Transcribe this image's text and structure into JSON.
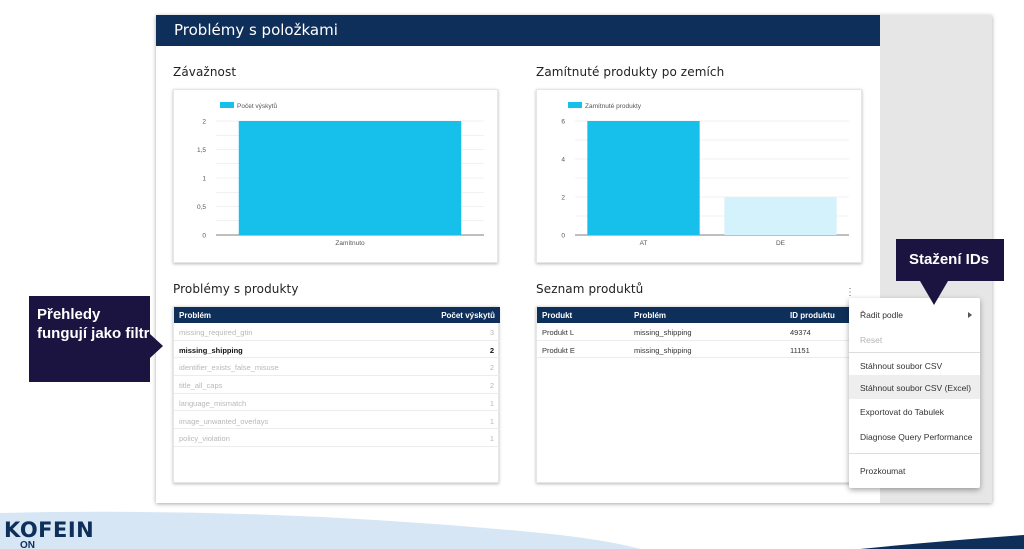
{
  "report": {
    "title": "Problémy s položkami"
  },
  "severity": {
    "title": "Závažnost",
    "chart_data": {
      "type": "bar",
      "categories": [
        "Zamítnuto"
      ],
      "series": [
        {
          "name": "Počet výskytů",
          "values": [
            2
          ]
        }
      ],
      "yticks": [
        "2",
        "1,5",
        "1",
        "0,5",
        "0"
      ],
      "ylim": [
        0,
        2
      ],
      "colors": [
        "#17c0eb"
      ]
    }
  },
  "country": {
    "title": "Zamítnuté produkty po zemích",
    "chart_data": {
      "type": "bar",
      "categories": [
        "AT",
        "DE"
      ],
      "series": [
        {
          "name": "Zamítnuté produkty",
          "values": [
            6,
            2
          ]
        }
      ],
      "yticks": [
        "6",
        "4",
        "2",
        "0"
      ],
      "ylim": [
        0,
        6
      ],
      "colors": [
        "#17c0eb",
        "#d4f2fb"
      ]
    }
  },
  "problems": {
    "title": "Problémy s produkty",
    "columns": [
      "Problém",
      "Počet výskytů"
    ],
    "rows": [
      {
        "name": "missing_required_gtin",
        "count": "3",
        "state": "muted"
      },
      {
        "name": "missing_shipping",
        "count": "2",
        "state": "strong"
      },
      {
        "name": "identifier_exists_false_misuse",
        "count": "2",
        "state": "muted"
      },
      {
        "name": "title_all_caps",
        "count": "2",
        "state": "muted"
      },
      {
        "name": "language_mismatch",
        "count": "1",
        "state": "muted"
      },
      {
        "name": "image_unwanted_overlays",
        "count": "1",
        "state": "muted"
      },
      {
        "name": "policy_violation",
        "count": "1",
        "state": "muted"
      }
    ]
  },
  "products": {
    "title": "Seznam produktů",
    "columns": [
      "Produkt",
      "Problém",
      "ID produktu"
    ],
    "rows": [
      {
        "product": "Produkt L",
        "problem": "missing_shipping",
        "id": "49374"
      },
      {
        "product": "Produkt E",
        "problem": "missing_shipping",
        "id": "11151"
      }
    ]
  },
  "menu": {
    "items": [
      {
        "label": "Řadit podle",
        "state": "normal",
        "submenu": true
      },
      {
        "label": "Reset",
        "state": "disabled"
      },
      {
        "label": "Stáhnout soubor CSV",
        "state": "normal"
      },
      {
        "label": "Stáhnout soubor CSV (Excel)",
        "state": "highlighted"
      },
      {
        "label": "Exportovat do Tabulek",
        "state": "normal"
      },
      {
        "label": "Diagnose Query Performance",
        "state": "normal"
      },
      {
        "label": "Prozkoumat",
        "state": "normal"
      }
    ]
  },
  "callouts": {
    "left": "Přehledy fungují jako filtr",
    "right": "Stažení IDs"
  },
  "footer": {
    "logo": "KOFEIN",
    "logo_sub": "ON"
  },
  "colors": {
    "navy": "#0e2f5a",
    "bar": "#17c0eb",
    "bar_light": "#d4f2fb",
    "callout": "#1b1440"
  }
}
